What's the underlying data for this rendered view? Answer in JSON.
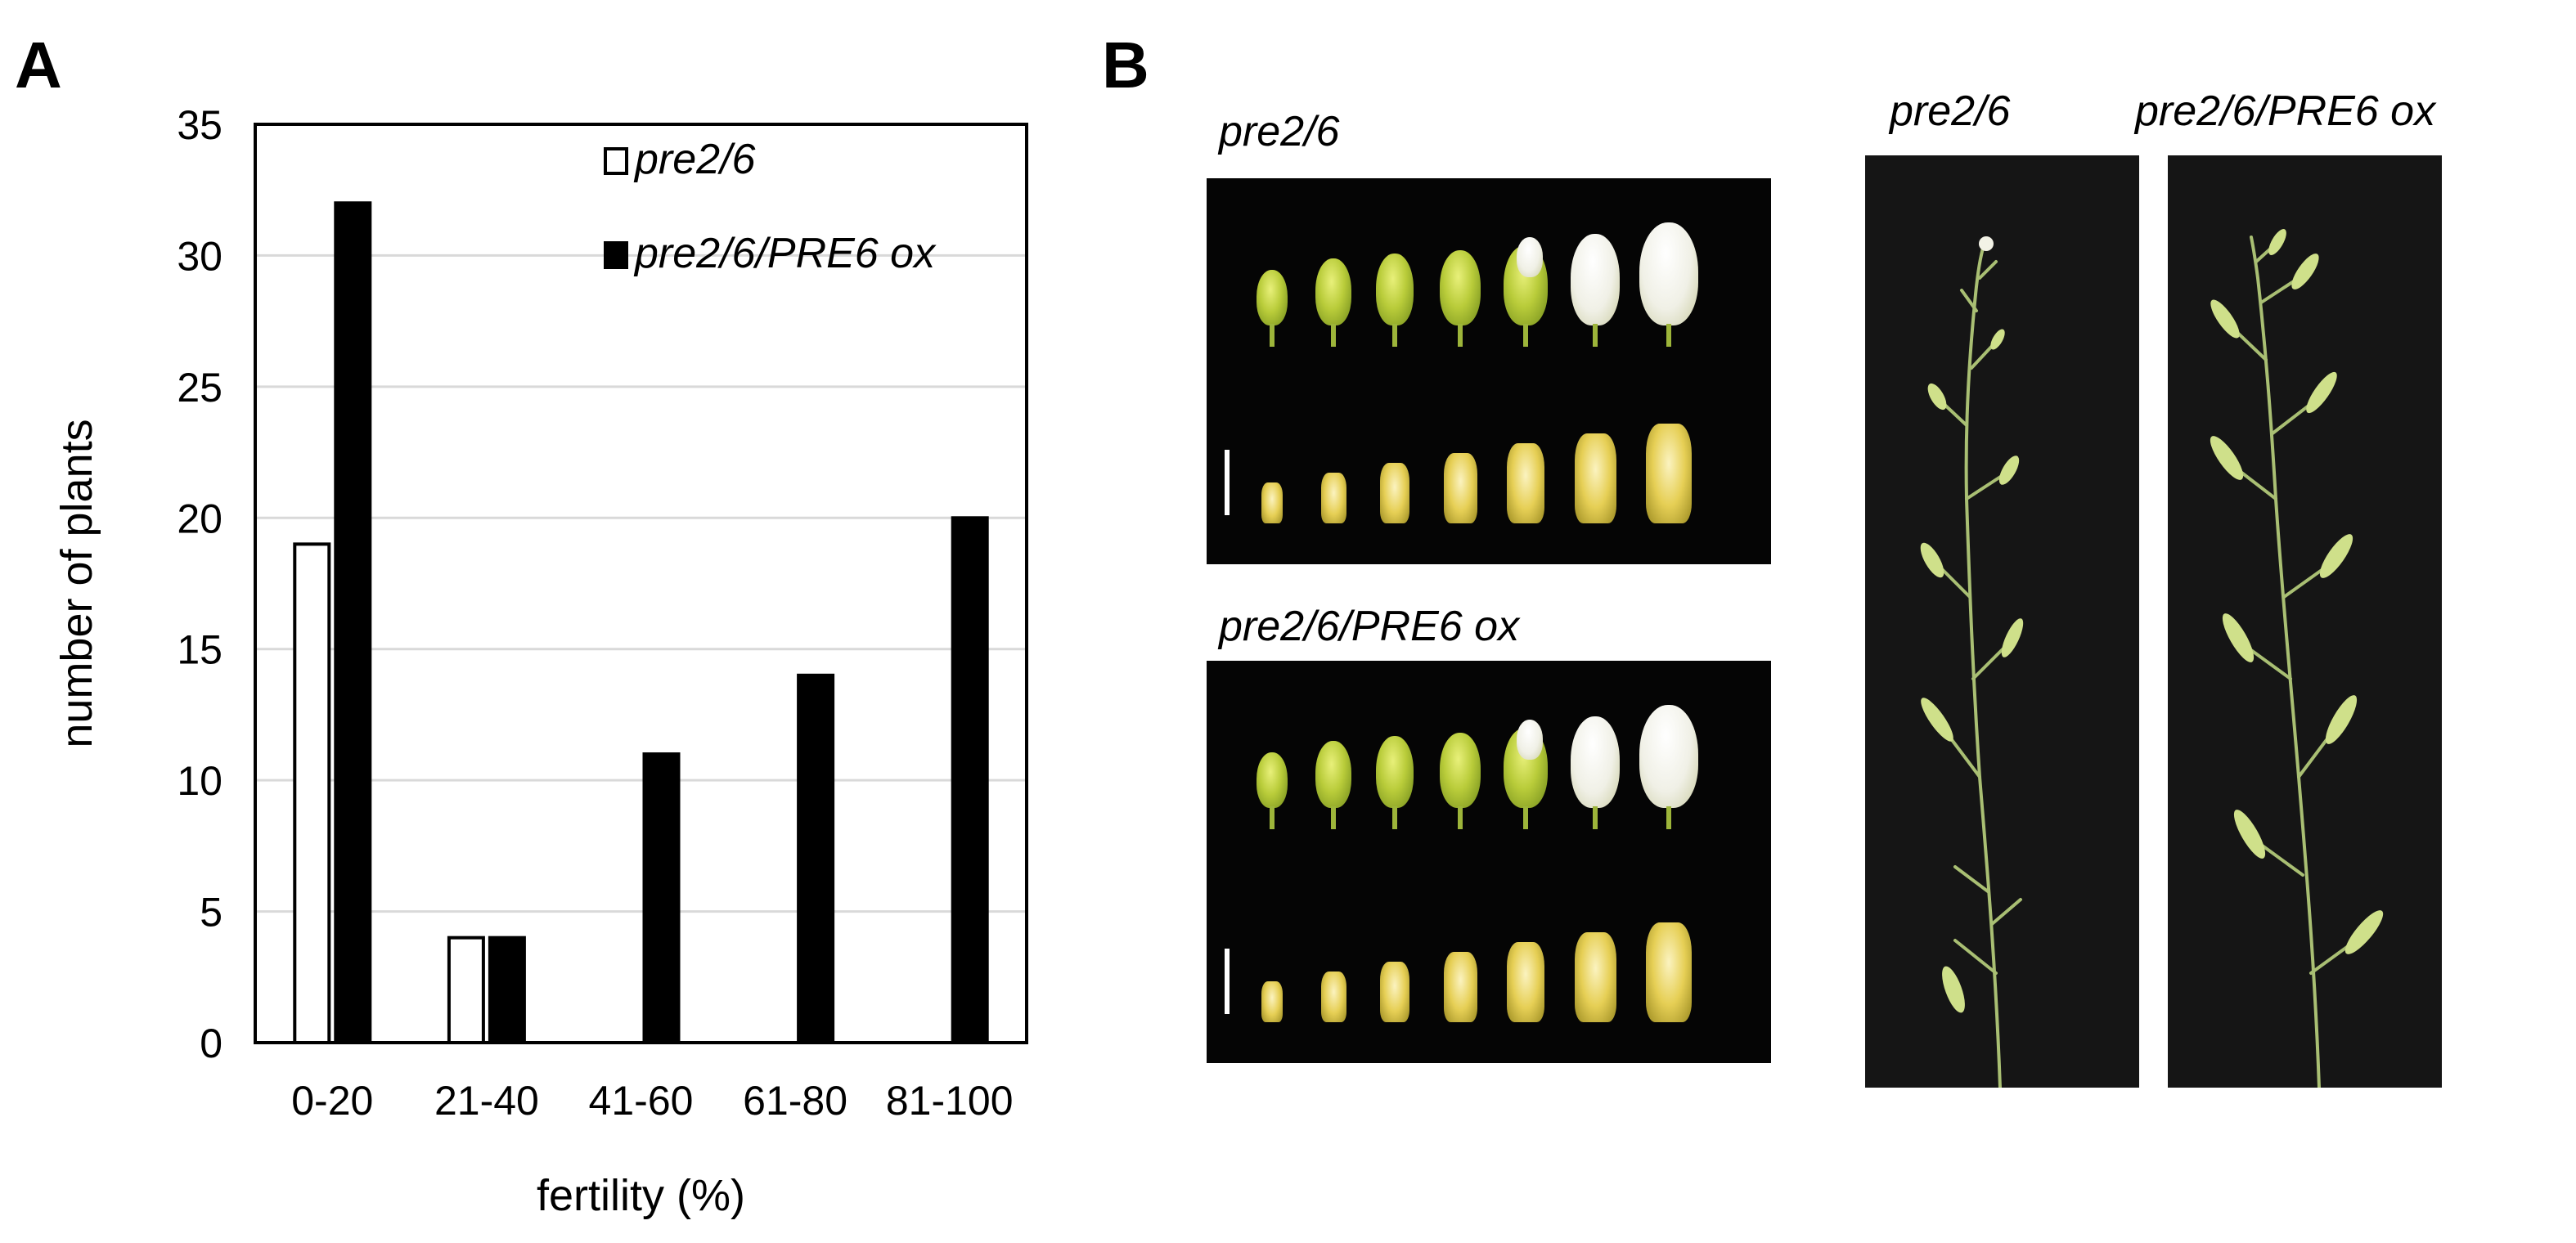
{
  "panel_a": {
    "letter": "A",
    "chart_data": {
      "type": "bar",
      "categories": [
        "0-20",
        "21-40",
        "41-60",
        "61-80",
        "81-100"
      ],
      "series": [
        {
          "name": "pre2/6",
          "values": [
            19,
            4,
            0,
            0,
            0
          ],
          "fill": "#ffffff"
        },
        {
          "name": "pre2/6/PRE6 ox",
          "values": [
            32,
            4,
            11,
            14,
            20
          ],
          "fill": "#000000"
        }
      ],
      "xlabel": "fertility (%)",
      "ylabel": "number of plants",
      "ylim": [
        0,
        35
      ],
      "yticks": [
        0,
        5,
        10,
        15,
        20,
        25,
        30,
        35
      ],
      "grid": true,
      "legend_position": "top-right"
    }
  },
  "panel_b": {
    "letter": "B",
    "flowers_top_label": "pre2/6",
    "flowers_bottom_label": "pre2/6/PRE6 ox",
    "inflorescence_left_label": "pre2/6",
    "inflorescence_right_label": "pre2/6/PRE6 ox"
  }
}
